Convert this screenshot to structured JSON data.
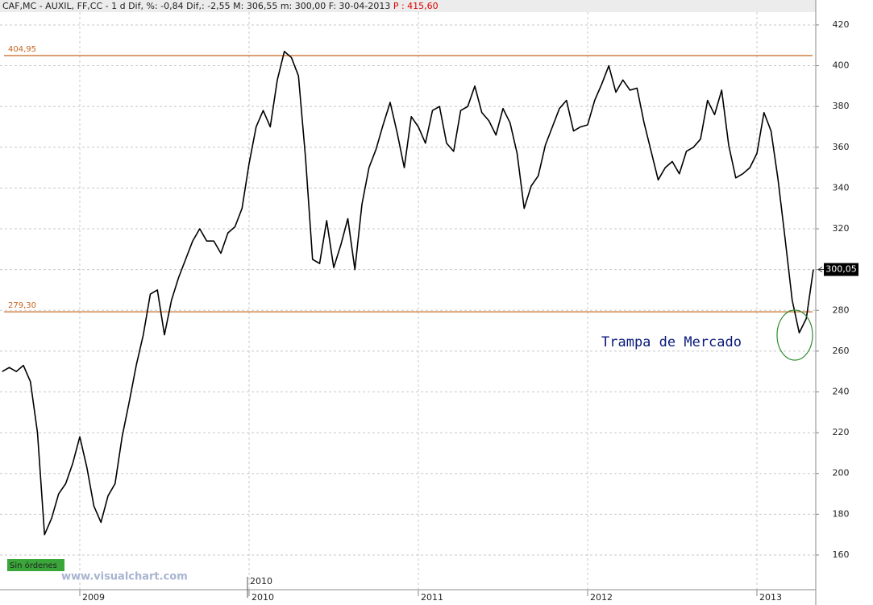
{
  "chart_data": {
    "type": "line",
    "title": "CAF,MC - AUXIL, FF,CC -  1 d Dif, %: -0,84 Dif,: -2,55 M: 306,55 m: 300,00 F: 30-04-2013",
    "price_note": "P : 415,60",
    "annotation": "Trampa de Mercado",
    "status_badge": "Sin órdenes",
    "watermark": "www.visualchart.com",
    "color": "#000000",
    "grid": true,
    "ylim": [
      143,
      426.3
    ],
    "yticks": [
      160,
      180,
      200,
      220,
      240,
      260,
      280,
      300,
      320,
      340,
      360,
      380,
      400,
      420
    ],
    "reference_lines": [
      {
        "value": 404.95,
        "label": "404,95",
        "color": "#c8641e"
      },
      {
        "value": 279.3,
        "label": "279,30",
        "color": "#c8641e"
      }
    ],
    "last_value": {
      "value": 300.05,
      "label": "300,05"
    },
    "categories": [
      null,
      null,
      null,
      null,
      null,
      null,
      null,
      null,
      null,
      null,
      null,
      "2009",
      null,
      null,
      null,
      null,
      null,
      null,
      null,
      null,
      null,
      null,
      null,
      null,
      null,
      null,
      null,
      null,
      null,
      null,
      null,
      null,
      null,
      null,
      null,
      "2010",
      null,
      null,
      null,
      null,
      null,
      null,
      null,
      null,
      null,
      null,
      null,
      null,
      null,
      null,
      null,
      null,
      null,
      null,
      null,
      null,
      null,
      null,
      null,
      "2011",
      null,
      null,
      null,
      null,
      null,
      null,
      null,
      null,
      null,
      null,
      null,
      null,
      null,
      null,
      null,
      null,
      null,
      null,
      null,
      null,
      null,
      null,
      null,
      "2012",
      null,
      null,
      null,
      null,
      null,
      null,
      null,
      null,
      null,
      null,
      null,
      null,
      null,
      null,
      null,
      null,
      null,
      null,
      null,
      null,
      null,
      null,
      null,
      "2013",
      null,
      null,
      null,
      null,
      null,
      null,
      null,
      null
    ],
    "values": [
      250,
      252,
      250,
      253,
      245,
      220,
      170,
      178,
      190,
      195,
      205,
      218,
      203,
      184,
      176,
      189,
      195,
      218,
      235,
      253,
      268,
      288,
      290,
      268,
      285,
      296,
      305,
      314,
      320,
      314,
      314,
      308,
      318,
      321,
      330,
      352,
      370,
      378,
      370,
      393,
      407,
      404,
      395,
      355,
      305,
      303,
      324,
      301,
      312,
      325,
      300,
      332,
      350,
      359,
      371,
      382,
      367,
      350,
      375,
      370,
      362,
      378,
      380,
      362,
      358,
      378,
      380,
      390,
      377,
      373,
      366,
      379,
      372,
      357,
      330,
      341,
      346,
      361,
      370,
      379,
      383,
      368,
      370,
      371,
      383,
      391,
      400,
      387,
      393,
      388,
      389,
      372,
      358,
      344,
      350,
      353,
      347,
      358,
      360,
      364,
      383,
      376,
      388,
      361,
      345,
      347,
      350,
      357,
      377,
      368,
      344,
      315,
      285,
      269,
      276,
      300
    ]
  }
}
